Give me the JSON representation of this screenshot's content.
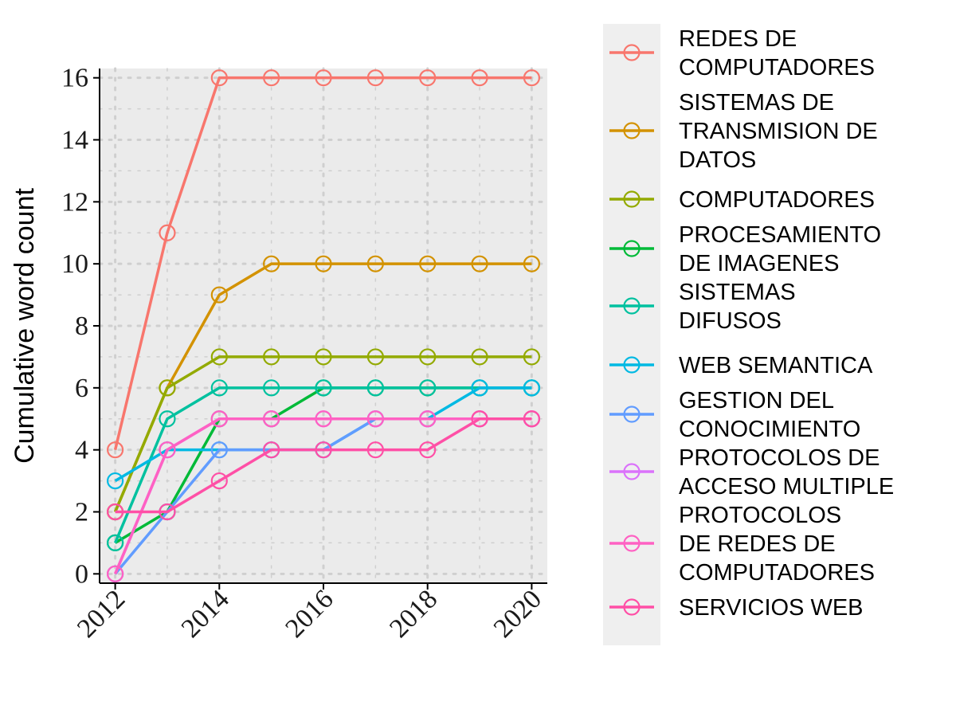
{
  "chart_data": {
    "type": "line",
    "xlabel": "",
    "ylabel": "Cumulative word count",
    "x": [
      2012,
      2013,
      2014,
      2015,
      2016,
      2017,
      2018,
      2019,
      2020
    ],
    "xticks": [
      "2012",
      "2014",
      "2016",
      "2018",
      "2020"
    ],
    "xlim": [
      2011.7,
      2020.3
    ],
    "ylim": [
      -0.3,
      16.3
    ],
    "yticks": [
      "0",
      "2",
      "4",
      "6",
      "8",
      "10",
      "12",
      "14",
      "16"
    ],
    "grid": true,
    "legend_position": "right",
    "series": [
      {
        "name_lines": [
          "REDES DE",
          "COMPUTADORES"
        ],
        "color": "#F8766D",
        "values": [
          4,
          11,
          16,
          16,
          16,
          16,
          16,
          16,
          16
        ]
      },
      {
        "name_lines": [
          "SISTEMAS DE",
          "TRANSMISION DE",
          "DATOS"
        ],
        "color": "#D39200",
        "values": [
          2,
          6,
          9,
          10,
          10,
          10,
          10,
          10,
          10
        ]
      },
      {
        "name_lines": [
          "COMPUTADORES"
        ],
        "color": "#93AA00",
        "values": [
          2,
          6,
          7,
          7,
          7,
          7,
          7,
          7,
          7
        ]
      },
      {
        "name_lines": [
          "PROCESAMIENTO",
          "DE IMAGENES"
        ],
        "color": "#00BA38",
        "values": [
          1,
          2,
          5,
          5,
          6,
          6,
          6,
          6,
          6
        ]
      },
      {
        "name_lines": [
          "SISTEMAS",
          "DIFUSOS"
        ],
        "color": "#00C19F",
        "values": [
          1,
          5,
          6,
          6,
          6,
          6,
          6,
          6,
          6
        ]
      },
      {
        "name_lines": [
          "WEB SEMANTICA"
        ],
        "color": "#00B9E3",
        "values": [
          3,
          4,
          4,
          4,
          4,
          5,
          5,
          6,
          6
        ]
      },
      {
        "name_lines": [
          "GESTION DEL",
          "CONOCIMIENTO"
        ],
        "color": "#619CFF",
        "values": [
          0,
          2,
          4,
          4,
          4,
          5,
          5,
          5,
          5
        ]
      },
      {
        "name_lines": [
          "PROTOCOLOS DE",
          "ACCESO MULTIPLE"
        ],
        "color": "#DB72FB",
        "values": [
          0,
          4,
          5,
          5,
          5,
          5,
          5,
          5,
          5
        ]
      },
      {
        "name_lines": [
          "PROTOCOLOS",
          "DE REDES DE",
          "COMPUTADORES"
        ],
        "color": "#FF61C3",
        "values": [
          0,
          4,
          5,
          5,
          5,
          5,
          5,
          5,
          5
        ]
      },
      {
        "name_lines": [
          "SERVICIOS WEB"
        ],
        "color": "#FF4FA6",
        "values": [
          2,
          2,
          3,
          4,
          4,
          4,
          4,
          5,
          5
        ]
      }
    ]
  }
}
